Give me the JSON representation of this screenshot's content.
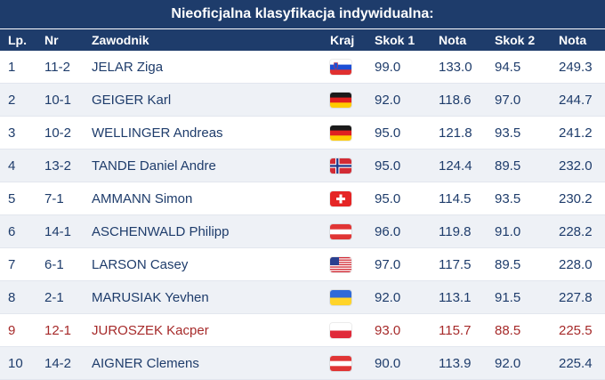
{
  "title": "Nieoficjalna klasyfikacja indywidualna:",
  "headers": {
    "lp": "Lp.",
    "nr": "Nr",
    "zawodnik": "Zawodnik",
    "kraj": "Kraj",
    "skok1": "Skok 1",
    "nota1": "Nota",
    "skok2": "Skok 2",
    "nota2": "Nota"
  },
  "colors": {
    "header_bg": "#1e3c6b",
    "text": "#1e3c6b",
    "highlight": "#a62a2a",
    "alt_row": "#eef1f6"
  },
  "rows": [
    {
      "lp": "1",
      "nr": "11-2",
      "name": "JELAR Ziga",
      "flag": "slovenia-flag-icon",
      "s1": "99.0",
      "n1": "133.0",
      "s2": "94.5",
      "n2": "249.3"
    },
    {
      "lp": "2",
      "nr": "10-1",
      "name": "GEIGER Karl",
      "flag": "germany-flag-icon",
      "s1": "92.0",
      "n1": "118.6",
      "s2": "97.0",
      "n2": "244.7"
    },
    {
      "lp": "3",
      "nr": "10-2",
      "name": "WELLINGER Andreas",
      "flag": "germany-flag-icon",
      "s1": "95.0",
      "n1": "121.8",
      "s2": "93.5",
      "n2": "241.2"
    },
    {
      "lp": "4",
      "nr": "13-2",
      "name": "TANDE Daniel Andre",
      "flag": "norway-flag-icon",
      "s1": "95.0",
      "n1": "124.4",
      "s2": "89.5",
      "n2": "232.0"
    },
    {
      "lp": "5",
      "nr": "7-1",
      "name": "AMMANN Simon",
      "flag": "switzerland-flag-icon",
      "s1": "95.0",
      "n1": "114.5",
      "s2": "93.5",
      "n2": "230.2"
    },
    {
      "lp": "6",
      "nr": "14-1",
      "name": "ASCHENWALD Philipp",
      "flag": "austria-flag-icon",
      "s1": "96.0",
      "n1": "119.8",
      "s2": "91.0",
      "n2": "228.2"
    },
    {
      "lp": "7",
      "nr": "6-1",
      "name": "LARSON Casey",
      "flag": "usa-flag-icon",
      "s1": "97.0",
      "n1": "117.5",
      "s2": "89.5",
      "n2": "228.0"
    },
    {
      "lp": "8",
      "nr": "2-1",
      "name": "MARUSIAK Yevhen",
      "flag": "ukraine-flag-icon",
      "s1": "92.0",
      "n1": "113.1",
      "s2": "91.5",
      "n2": "227.8"
    },
    {
      "lp": "9",
      "nr": "12-1",
      "name": "JUROSZEK Kacper",
      "flag": "poland-flag-icon",
      "s1": "93.0",
      "n1": "115.7",
      "s2": "88.5",
      "n2": "225.5"
    },
    {
      "lp": "10",
      "nr": "14-2",
      "name": "AIGNER Clemens",
      "flag": "austria-flag-icon",
      "s1": "90.0",
      "n1": "113.9",
      "s2": "92.0",
      "n2": "225.4"
    }
  ]
}
